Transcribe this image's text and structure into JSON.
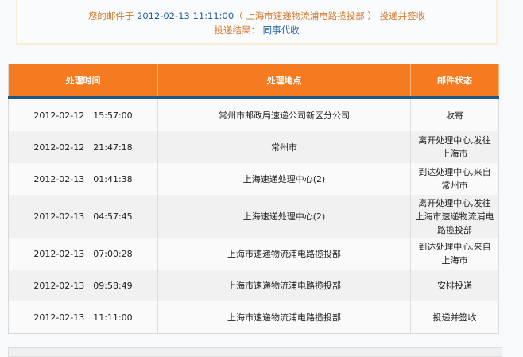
{
  "notice": {
    "prefix": "您的邮件于",
    "time": "2012-02-13 11:11:00",
    "location": "（ 上海市速递物流浦电路揽投部 ）",
    "suffix": "投递并签收",
    "result_label": "投递结果：",
    "result_value": "同事代收"
  },
  "table": {
    "headers": [
      "处理时间",
      "处理地点",
      "邮件状态"
    ],
    "rows": [
      {
        "time": "2012-02-12　15:57:00",
        "place": "常州市邮政局速递公司新区分公司",
        "status": "收寄"
      },
      {
        "time": "2012-02-12　21:47:18",
        "place": "常州市",
        "status": "离开处理中心,发往上海市"
      },
      {
        "time": "2012-02-13　01:41:38",
        "place": "上海速递处理中心(2)",
        "status": "到达处理中心,来自常州市"
      },
      {
        "time": "2012-02-13　04:57:45",
        "place": "上海速递处理中心(2)",
        "status": "离开处理中心,发往上海市速递物流浦电路揽投部"
      },
      {
        "time": "2012-02-13　07:00:28",
        "place": "上海市速递物流浦电路揽投部",
        "status": "到达处理中心,来自上海市"
      },
      {
        "time": "2012-02-13　09:58:49",
        "place": "上海市速递物流浦电路揽投部",
        "status": "安排投递"
      },
      {
        "time": "2012-02-13　11:11:00",
        "place": "上海市速递物流浦电路揽投部",
        "status": "投递并签收"
      }
    ]
  },
  "colors": {
    "header": "#f57a20",
    "header_border": "#1f5a85",
    "notice_text": "#d2782a",
    "highlight": "#1f5f9e"
  }
}
